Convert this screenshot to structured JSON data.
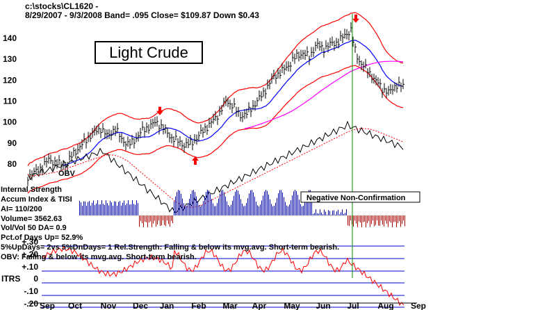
{
  "header": {
    "path": "c:\\stocks\\CL1620   -",
    "info": "8/29/2007 - 9/3/2008  Band= .095   Close= $109.87   Down $0.43"
  },
  "title_box": "Light Crude",
  "indicator_panel": {
    "lines": [
      "Internal Strength",
      "Accum Index & TISI",
      "AI= 110/200",
      "Volume= 3562.63",
      "Vol/Vol 50 DA= 0.9",
      "Pct.of Days Up= 52.9%",
      "5%UpDays= 2vs 5%DnDays= 1   Rel.Strength: Falling & below its mvg.avg. Short-term bearish.",
      "OBV: Falling & below its mvg.avg. Short-term bearish."
    ],
    "obv_label": "OBV",
    "annotation": "Negative Non-Confirmation"
  },
  "itrs_panel": {
    "label": "ITRS",
    "ticks": [
      "+.30",
      "+.20",
      "+.10",
      "0",
      "-.10",
      "-.20"
    ]
  },
  "colors": {
    "price": "#000000",
    "band": "#ff0000",
    "ma_blue": "#0000ff",
    "ma_magenta": "#ff00ff",
    "obv": "#000000",
    "obv_ma": "#ff0000",
    "accum_pos": "#0000aa",
    "accum_neg": "#aa0000",
    "itrs_line": "#ff0000",
    "grid_blue": "#0000cc",
    "signal_line": "#008800"
  },
  "chart_data": {
    "type": "line",
    "title": "Light Crude",
    "x_tick_labels": [
      "Sep",
      "Oct",
      "Nov",
      "Dec",
      "Jan",
      "Feb",
      "Mar",
      "Apr",
      "May",
      "Jun",
      "Jul",
      "Aug",
      "Sep"
    ],
    "y_ticks": [
      80,
      90,
      100,
      110,
      120,
      130,
      140
    ],
    "ylim": [
      73,
      149
    ],
    "grid": false,
    "series": [
      {
        "name": "Close",
        "x": [
          "Sep",
          "Oct",
          "Nov",
          "Dec",
          "Jan",
          "Feb",
          "Mar",
          "Apr",
          "May",
          "Jun",
          "Jul",
          "Aug",
          "Sep"
        ],
        "values": [
          74,
          83,
          97,
          90,
          96,
          90,
          102,
          104,
          124,
          137,
          141,
          116,
          110
        ]
      }
    ],
    "signals": [
      {
        "type": "sell",
        "x": "Dec"
      },
      {
        "type": "buy",
        "x": "Jan"
      },
      {
        "type": "sell",
        "x": "Jul"
      }
    ],
    "itrs_ylim": [
      -0.22,
      0.32
    ]
  }
}
